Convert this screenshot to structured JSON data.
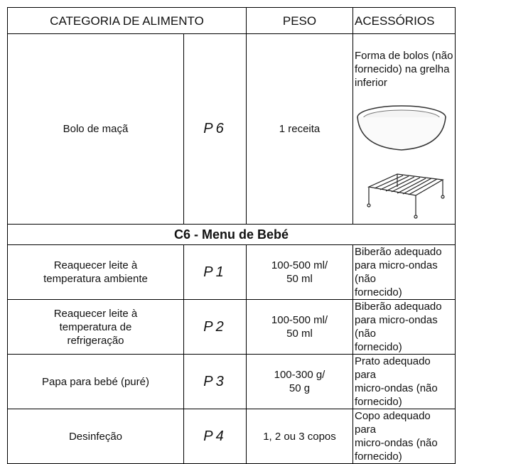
{
  "table": {
    "header": [
      "CATEGORIA DE ALIMENTO",
      "PESO",
      "ACESSÓRIOS"
    ],
    "rows": [
      {
        "food": "Bolo de maçã",
        "code": "P6",
        "weight": "1 receita",
        "accessory": "Forma de bolos (não\nfornecido) na grelha\ninferior"
      },
      {
        "food": "Reaquecer leite à\ntemperatura ambiente",
        "code": "P1",
        "weight": "100-500 ml/\n50 ml",
        "accessory": "Biberão adequado\npara micro-ondas (não\nfornecido)"
      },
      {
        "food": "Reaquecer leite à\ntemperatura de\nrefrigeração",
        "code": "P2",
        "weight": "100-500 ml/\n50 ml",
        "accessory": "Biberão adequado\npara micro-ondas (não\nfornecido)"
      },
      {
        "food": "Papa para bebé (puré)",
        "code": "P3",
        "weight": "100-300 g/\n50 g",
        "accessory": "Prato adequado para\nmicro-ondas (não\nfornecido)"
      },
      {
        "food": "Desinfeção",
        "code": "P4",
        "weight": "1, 2 ou 3 copos",
        "accessory": "Copo adequado para\nmicro-ondas (não\nfornecido)"
      }
    ],
    "section": "C6 - Menu de Bebé"
  }
}
